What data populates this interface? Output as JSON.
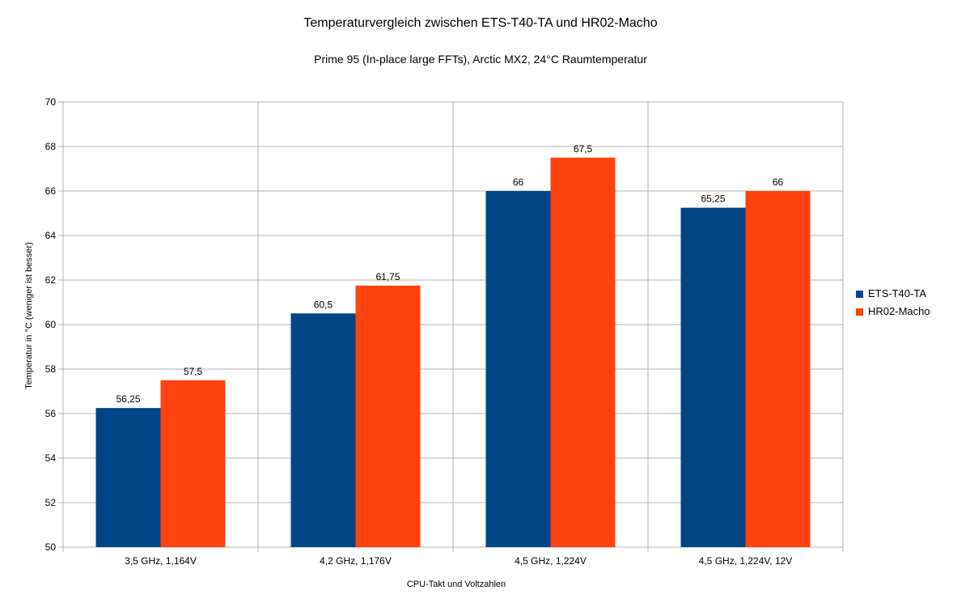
{
  "chart_data": {
    "type": "bar",
    "title": "Temperaturvergleich zwischen ETS-T40-TA und HR02-Macho",
    "subtitle": "Prime 95 (In-place large FFTs), Arctic MX2, 24°C Raumtemperatur",
    "xlabel": "CPU-Takt und Voltzahlen",
    "ylabel": "Temperatur in °C (weniger ist besser)",
    "categories": [
      "3,5 GHz, 1,164V",
      "4,2 GHz, 1,176V",
      "4,5 GHz, 1,224V",
      "4,5 GHz, 1,224V, 12V"
    ],
    "series": [
      {
        "name": "ETS-T40-TA",
        "color": "#004586",
        "values": [
          56.25,
          60.5,
          66,
          65.25
        ],
        "labels": [
          "56,25",
          "60,5",
          "66",
          "65,25"
        ]
      },
      {
        "name": "HR02-Macho",
        "color": "#ff420e",
        "values": [
          57.5,
          61.75,
          67.5,
          66
        ],
        "labels": [
          "57,5",
          "61,75",
          "67,5",
          "66"
        ]
      }
    ],
    "ylim": [
      50,
      70
    ],
    "yticks": [
      50,
      52,
      54,
      56,
      58,
      60,
      62,
      64,
      66,
      68,
      70
    ],
    "grid": true,
    "legend": "right"
  }
}
